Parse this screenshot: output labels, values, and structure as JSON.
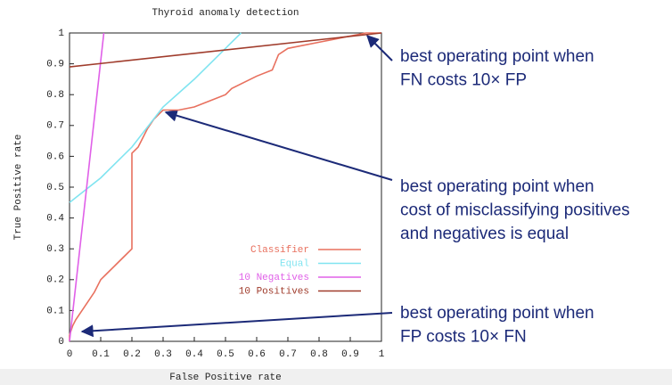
{
  "chart_data": {
    "type": "line",
    "title": "Thyroid anomaly detection",
    "x_label": "False Positive rate",
    "y_label": "True Positive rate",
    "xlim": [
      0,
      1
    ],
    "ylim": [
      0,
      1
    ],
    "xticks": [
      0,
      0.1,
      0.2,
      0.3,
      0.4,
      0.5,
      0.6,
      0.7,
      0.8,
      0.9,
      1
    ],
    "yticks": [
      0,
      0.1,
      0.2,
      0.3,
      0.4,
      0.5,
      0.6,
      0.7,
      0.8,
      0.9,
      1
    ],
    "legend": "lower right",
    "grid": false,
    "series": [
      {
        "name": "Classifier",
        "color": "#e8705e",
        "x": [
          0,
          0,
          0.01,
          0.02,
          0.04,
          0.06,
          0.08,
          0.1,
          0.12,
          0.15,
          0.18,
          0.2,
          0.2,
          0.22,
          0.25,
          0.27,
          0.29,
          0.3,
          0.35,
          0.4,
          0.45,
          0.5,
          0.52,
          0.6,
          0.65,
          0.67,
          0.7,
          0.75,
          0.8,
          0.85,
          0.9,
          0.95,
          1
        ],
        "values": [
          0,
          0.02,
          0.05,
          0.07,
          0.1,
          0.13,
          0.16,
          0.2,
          0.22,
          0.25,
          0.28,
          0.3,
          0.61,
          0.63,
          0.69,
          0.72,
          0.74,
          0.75,
          0.75,
          0.76,
          0.78,
          0.8,
          0.82,
          0.86,
          0.88,
          0.93,
          0.95,
          0.96,
          0.97,
          0.98,
          0.99,
          1,
          1
        ]
      },
      {
        "name": "Equal",
        "color": "#80e4f0",
        "x": [
          0,
          0.1,
          0.2,
          0.3,
          0.4,
          0.55
        ],
        "values": [
          0.45,
          0.53,
          0.63,
          0.76,
          0.85,
          1
        ]
      },
      {
        "name": "10 Negatives",
        "color": "#e060e8",
        "x": [
          0,
          0.11
        ],
        "values": [
          0,
          1
        ]
      },
      {
        "name": "10 Positives",
        "color": "#a03c2c",
        "x": [
          0,
          1
        ],
        "values": [
          0.89,
          1
        ]
      }
    ],
    "annotations": [
      {
        "lines": [
          "best operating point when",
          "FN costs 10× FP"
        ]
      },
      {
        "lines": [
          "best operating point when",
          "cost of misclassifying positives",
          "and negatives is equal"
        ]
      },
      {
        "lines": [
          "best operating point when",
          "FP costs 10× FN"
        ]
      }
    ]
  }
}
